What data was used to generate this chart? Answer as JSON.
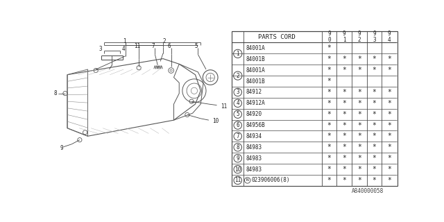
{
  "bg_color": "#ffffff",
  "diagram_label": "A840000058",
  "table_header": "PARTS CORD",
  "year_cols": [
    "9\n0",
    "9\n1",
    "9\n2",
    "9\n3",
    "9\n4"
  ],
  "rows": [
    {
      "num": "1",
      "parts": [
        "84001A",
        "84001B"
      ],
      "marks": [
        [
          "*",
          "",
          "",
          "",
          ""
        ],
        [
          "*",
          "*",
          "*",
          "*",
          "*"
        ]
      ]
    },
    {
      "num": "2",
      "parts": [
        "84001A",
        "84001B"
      ],
      "marks": [
        [
          "*",
          "*",
          "*",
          "*",
          "*"
        ],
        [
          "*",
          "",
          "",
          "",
          ""
        ]
      ]
    },
    {
      "num": "3",
      "parts": [
        "84912"
      ],
      "marks": [
        [
          "*",
          "*",
          "*",
          "*",
          "*"
        ]
      ]
    },
    {
      "num": "4",
      "parts": [
        "84912A"
      ],
      "marks": [
        [
          "*",
          "*",
          "*",
          "*",
          "*"
        ]
      ]
    },
    {
      "num": "5",
      "parts": [
        "84920"
      ],
      "marks": [
        [
          "*",
          "*",
          "*",
          "*",
          "*"
        ]
      ]
    },
    {
      "num": "6",
      "parts": [
        "84956B"
      ],
      "marks": [
        [
          "*",
          "*",
          "*",
          "*",
          "*"
        ]
      ]
    },
    {
      "num": "7",
      "parts": [
        "84934"
      ],
      "marks": [
        [
          "*",
          "*",
          "*",
          "*",
          "*"
        ]
      ]
    },
    {
      "num": "8",
      "parts": [
        "84983"
      ],
      "marks": [
        [
          "*",
          "*",
          "*",
          "*",
          "*"
        ]
      ]
    },
    {
      "num": "9",
      "parts": [
        "84983"
      ],
      "marks": [
        [
          "*",
          "*",
          "*",
          "*",
          "*"
        ]
      ]
    },
    {
      "num": "10",
      "parts": [
        "84983"
      ],
      "marks": [
        [
          "*",
          "*",
          "*",
          "*",
          "*"
        ]
      ]
    },
    {
      "num": "11",
      "parts": [
        "N023906006(8)"
      ],
      "marks": [
        [
          "*",
          "*",
          "*",
          "*",
          "*"
        ]
      ]
    }
  ],
  "line_color": "#444444",
  "text_color": "#222222"
}
